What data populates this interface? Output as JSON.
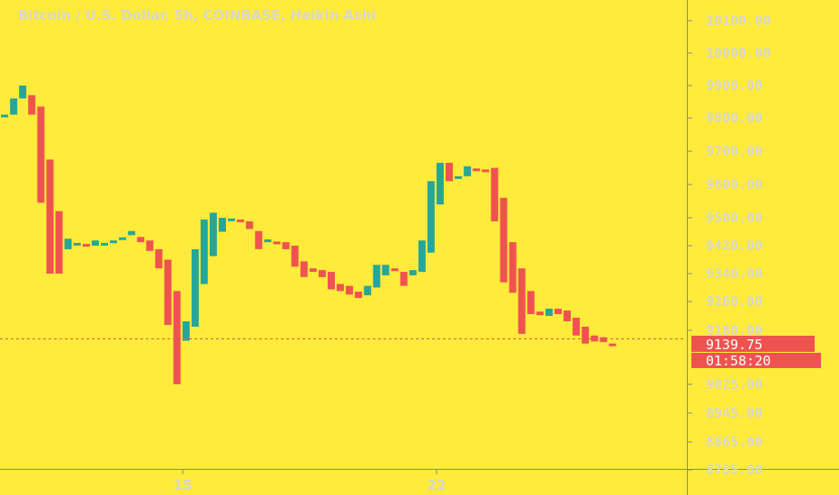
{
  "chart": {
    "title": "Bitcoin / U.S. Dollar, 5h, COINBASE, Heikin Ashi",
    "price_label": "9139.75",
    "countdown_label": "01:58:20"
  },
  "colors": {
    "background": "#FFEB3B",
    "up": "#26A69A",
    "down": "#EF5350",
    "axis_text": "#D8D8C8",
    "axis_line": "#888888"
  },
  "chart_data": {
    "type": "candlestick",
    "title": "Bitcoin / U.S. Dollar, 5h, COINBASE, Heikin Ashi",
    "y_ticks": [
      "10100.00",
      "10000.00",
      "9900.00",
      "9800.00",
      "9700.00",
      "9600.00",
      "9500.00",
      "9420.00",
      "9340.00",
      "9260.00",
      "9180.00",
      "9025.00",
      "8945.00",
      "8865.00",
      "8785.00"
    ],
    "x_ticks": [
      "15",
      "22"
    ],
    "last_price": 9139.75,
    "candles": [
      {
        "o": 9815,
        "c": 9810,
        "d": "up"
      },
      {
        "o": 9810,
        "c": 9810,
        "d": "up"
      },
      {
        "o": 9810,
        "c": 9860,
        "d": "up"
      },
      {
        "o": 9860,
        "c": 9900,
        "d": "up"
      },
      {
        "o": 9870,
        "c": 9810,
        "d": "down"
      },
      {
        "o": 9835,
        "c": 9545,
        "d": "down"
      },
      {
        "o": 9675,
        "c": 9340,
        "d": "down"
      },
      {
        "o": 9520,
        "c": 9340,
        "d": "down"
      },
      {
        "o": 9440,
        "c": 9410,
        "d": "up"
      },
      {
        "o": 9428,
        "c": 9426,
        "d": "up"
      },
      {
        "o": 9425,
        "c": 9418,
        "d": "down"
      },
      {
        "o": 9420,
        "c": 9435,
        "d": "up"
      },
      {
        "o": 9428,
        "c": 9426,
        "d": "up"
      },
      {
        "o": 9428,
        "c": 9435,
        "d": "up"
      },
      {
        "o": 9440,
        "c": 9444,
        "d": "up"
      },
      {
        "o": 9450,
        "c": 9462,
        "d": "up"
      },
      {
        "o": 9445,
        "c": 9430,
        "d": "down"
      },
      {
        "o": 9435,
        "c": 9405,
        "d": "down"
      },
      {
        "o": 9410,
        "c": 9355,
        "d": "down"
      },
      {
        "o": 9380,
        "c": 9195,
        "d": "down"
      },
      {
        "o": 9290,
        "c": 9025,
        "d": "down"
      },
      {
        "o": 9205,
        "c": 9150,
        "d": "up"
      },
      {
        "o": 9190,
        "c": 9410,
        "d": "up"
      },
      {
        "o": 9310,
        "c": 9495,
        "d": "up"
      },
      {
        "o": 9390,
        "c": 9515,
        "d": "up"
      },
      {
        "o": 9460,
        "c": 9500,
        "d": "up"
      },
      {
        "o": 9498,
        "c": 9496,
        "d": "up"
      },
      {
        "o": 9495,
        "c": 9490,
        "d": "down"
      },
      {
        "o": 9490,
        "c": 9468,
        "d": "down"
      },
      {
        "o": 9462,
        "c": 9410,
        "d": "down"
      },
      {
        "o": 9438,
        "c": 9430,
        "d": "up"
      },
      {
        "o": 9432,
        "c": 9428,
        "d": "down"
      },
      {
        "o": 9430,
        "c": 9410,
        "d": "down"
      },
      {
        "o": 9420,
        "c": 9360,
        "d": "down"
      },
      {
        "o": 9375,
        "c": 9330,
        "d": "down"
      },
      {
        "o": 9355,
        "c": 9345,
        "d": "down"
      },
      {
        "o": 9350,
        "c": 9330,
        "d": "down"
      },
      {
        "o": 9345,
        "c": 9295,
        "d": "down"
      },
      {
        "o": 9310,
        "c": 9290,
        "d": "down"
      },
      {
        "o": 9305,
        "c": 9280,
        "d": "down"
      },
      {
        "o": 9288,
        "c": 9270,
        "d": "down"
      },
      {
        "o": 9278,
        "c": 9305,
        "d": "up"
      },
      {
        "o": 9300,
        "c": 9365,
        "d": "up"
      },
      {
        "o": 9335,
        "c": 9365,
        "d": "up"
      },
      {
        "o": 9355,
        "c": 9350,
        "d": "down"
      },
      {
        "o": 9345,
        "c": 9305,
        "d": "down"
      },
      {
        "o": 9335,
        "c": 9350,
        "d": "up"
      },
      {
        "o": 9345,
        "c": 9435,
        "d": "up"
      },
      {
        "o": 9400,
        "c": 9610,
        "d": "up"
      },
      {
        "o": 9540,
        "c": 9665,
        "d": "up"
      },
      {
        "o": 9665,
        "c": 9610,
        "d": "down"
      },
      {
        "o": 9625,
        "c": 9620,
        "d": "up"
      },
      {
        "o": 9625,
        "c": 9655,
        "d": "up"
      },
      {
        "o": 9648,
        "c": 9645,
        "d": "down"
      },
      {
        "o": 9645,
        "c": 9640,
        "d": "down"
      },
      {
        "o": 9650,
        "c": 9490,
        "d": "down"
      },
      {
        "o": 9560,
        "c": 9315,
        "d": "down"
      },
      {
        "o": 9430,
        "c": 9285,
        "d": "down"
      },
      {
        "o": 9355,
        "c": 9170,
        "d": "down"
      },
      {
        "o": 9290,
        "c": 9225,
        "d": "down"
      },
      {
        "o": 9232,
        "c": 9222,
        "d": "down"
      },
      {
        "o": 9220,
        "c": 9240,
        "d": "up"
      },
      {
        "o": 9240,
        "c": 9225,
        "d": "down"
      },
      {
        "o": 9235,
        "c": 9205,
        "d": "down"
      },
      {
        "o": 9215,
        "c": 9165,
        "d": "down"
      },
      {
        "o": 9190,
        "c": 9142,
        "d": "down"
      },
      {
        "o": 9165,
        "c": 9148,
        "d": "down"
      },
      {
        "o": 9160,
        "c": 9146,
        "d": "down"
      },
      {
        "o": 9142,
        "c": 9140,
        "d": "down"
      }
    ]
  }
}
